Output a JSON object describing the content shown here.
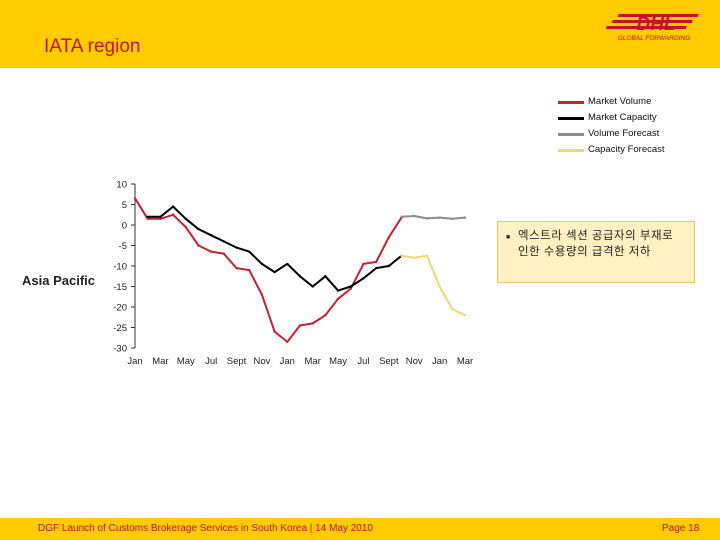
{
  "header": {
    "title": "IATA region"
  },
  "logo": {
    "brand": "DHL",
    "tagline": "GLOBAL FORWARDING"
  },
  "region_label": "Asia Pacific",
  "note": {
    "text": "엑스트라 섹션 공급자의 부재로 인한 수용량의 급격한 저하"
  },
  "footer": {
    "text": "DGF Launch of Customs Brokerage Services in South Korea | 14 May 2010",
    "page": "Page 18"
  },
  "colors": {
    "accent_yellow": "#FFCC00",
    "brand_red": "#C8102E",
    "volume": "#C8202E",
    "capacity": "#000000",
    "volume_forecast": "#8C8C8C",
    "capacity_forecast": "#F0D870"
  },
  "chart_data": {
    "type": "line",
    "title": "",
    "xlabel": "",
    "ylabel": "",
    "ylim": [
      -30,
      10
    ],
    "yticks": [
      10,
      5,
      0,
      -5,
      -10,
      -15,
      -20,
      -25,
      -30
    ],
    "xtick_labels": [
      "Jan",
      "Mar",
      "May",
      "Jul",
      "Sept",
      "Nov",
      "Jan",
      "Mar",
      "May",
      "Jul",
      "Sept",
      "Nov",
      "Jan",
      "Mar"
    ],
    "x_range": [
      0,
      26
    ],
    "legend_position": "top-right",
    "series": [
      {
        "name": "Market Volume",
        "color": "#C8202E",
        "x": [
          0,
          1,
          2,
          3,
          4,
          5,
          6,
          7,
          8,
          9,
          10,
          11,
          12,
          13,
          14,
          15,
          16,
          17,
          18,
          19,
          20,
          21
        ],
        "y": [
          6.5,
          1.5,
          1.5,
          2.5,
          -0.5,
          -5,
          -6.5,
          -7,
          -10.5,
          -11,
          -17,
          -26,
          -28.5,
          -24.5,
          -24,
          -22,
          -18,
          -15.5,
          -9.5,
          -9,
          -3,
          1.8
        ]
      },
      {
        "name": "Market Capacity",
        "color": "#000000",
        "x": [
          1,
          2,
          3,
          4,
          5,
          6,
          7,
          8,
          9,
          10,
          11,
          12,
          13,
          14,
          15,
          16,
          17,
          18,
          19,
          20,
          21
        ],
        "y": [
          2,
          2,
          4.5,
          1.5,
          -1,
          -2.5,
          -4,
          -5.5,
          -6.5,
          -9.5,
          -11.5,
          -9.5,
          -12.5,
          -15,
          -12.5,
          -16,
          -15,
          -13,
          -10.5,
          -10,
          -7.5
        ]
      },
      {
        "name": "Volume Forecast",
        "color": "#8C8C8C",
        "x": [
          21,
          22,
          23,
          24,
          25,
          26
        ],
        "y": [
          2,
          2.2,
          1.6,
          1.8,
          1.5,
          1.8
        ]
      },
      {
        "name": "Capacity Forecast",
        "color": "#F0D870",
        "x": [
          21,
          22,
          23,
          24,
          25,
          26
        ],
        "y": [
          -7.5,
          -8,
          -7.5,
          -15,
          -20.5,
          -22
        ]
      }
    ]
  }
}
